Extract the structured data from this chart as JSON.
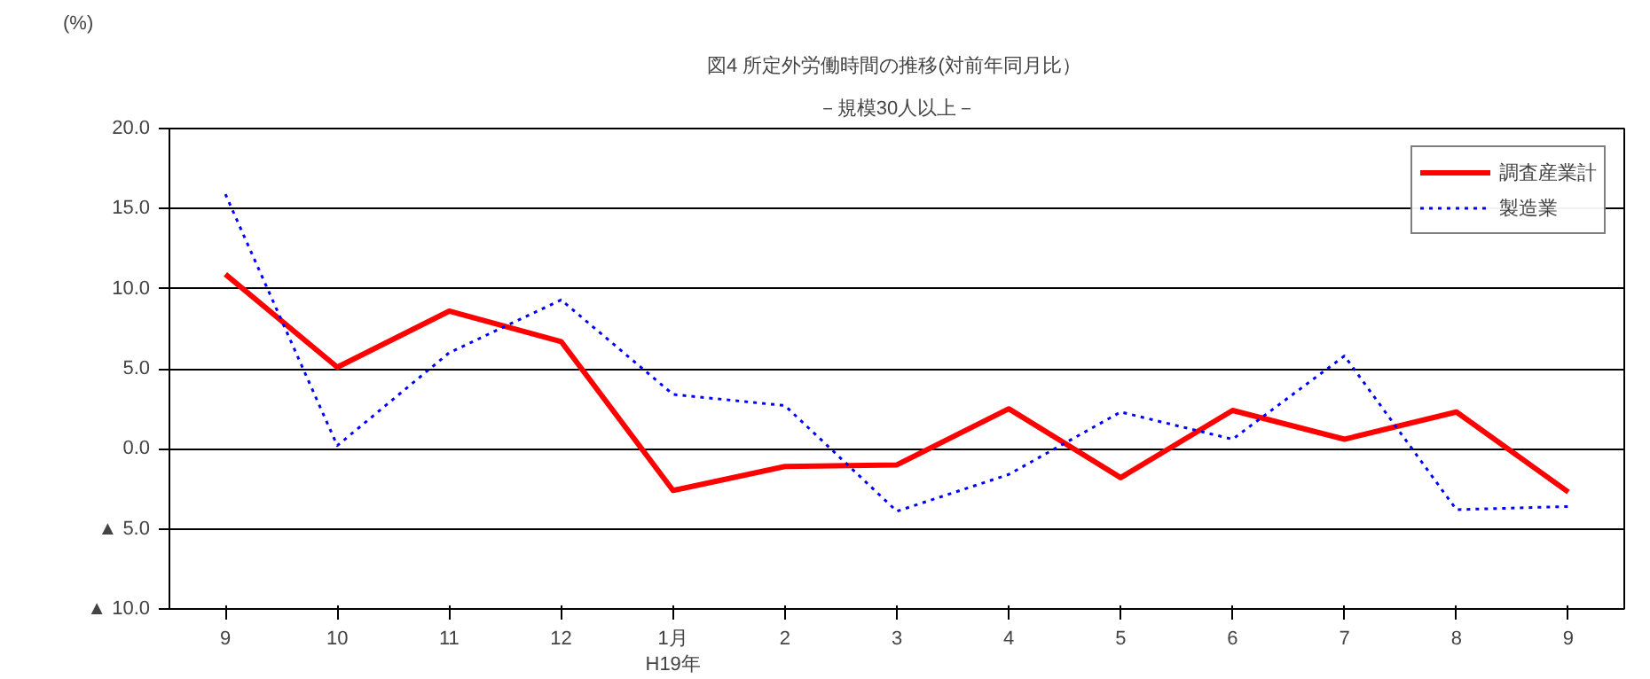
{
  "chart_data": {
    "type": "line",
    "title": "図4  所定外労働時間の推移(対前年同月比）",
    "subtitle": "－規模30人以上－",
    "ylabel": "(%)",
    "categories": [
      "9",
      "10",
      "11",
      "12",
      "1月\nH19年",
      "2",
      "3",
      "4",
      "5",
      "6",
      "7",
      "8",
      "9"
    ],
    "series": [
      {
        "name": "調査産業計",
        "color": "#ff0000",
        "line_style": "solid",
        "values": [
          10.9,
          5.1,
          8.6,
          6.7,
          -2.6,
          -1.1,
          -1.0,
          2.5,
          -1.8,
          2.4,
          0.6,
          2.3,
          -2.7
        ]
      },
      {
        "name": "製造業",
        "color": "#0000ff",
        "line_style": "dotted",
        "values": [
          15.9,
          0.2,
          6.0,
          9.3,
          3.4,
          2.7,
          -3.9,
          -1.6,
          2.3,
          0.6,
          5.8,
          -3.8,
          -3.6
        ]
      }
    ],
    "ylim": [
      -10,
      20
    ],
    "yticks": [
      {
        "value": 20,
        "label": "20.0"
      },
      {
        "value": 15,
        "label": "15.0"
      },
      {
        "value": 10,
        "label": "10.0"
      },
      {
        "value": 5,
        "label": "5.0"
      },
      {
        "value": 0,
        "label": "0.0"
      },
      {
        "value": -5,
        "label": "▲ 5.0"
      },
      {
        "value": -10,
        "label": "▲ 10.0"
      }
    ],
    "grid": "y",
    "legend": "top right",
    "marker": "none"
  }
}
